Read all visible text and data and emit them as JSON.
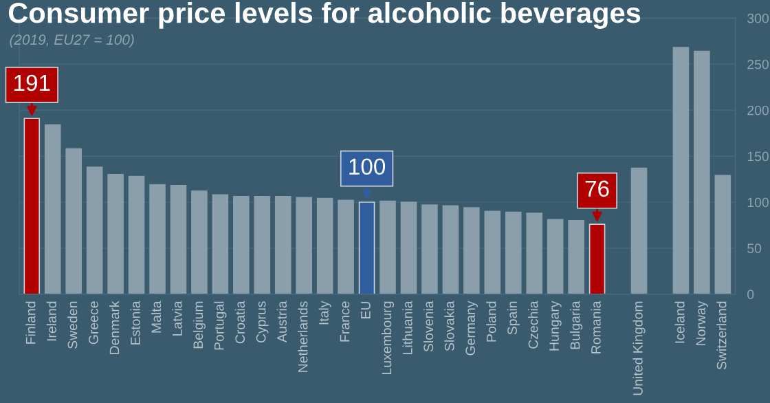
{
  "chart_data": {
    "type": "bar",
    "title": "Consumer price levels for alcoholic beverages",
    "subtitle": "(2019, EU27 = 100)",
    "categories": [
      "Finland",
      "Ireland",
      "Sweden",
      "Greece",
      "Denmark",
      "Estonia",
      "Malta",
      "Latvia",
      "Belgium",
      "Portugal",
      "Croatia",
      "Cyprus",
      "Austria",
      "Netherlands",
      "Italy",
      "France",
      "EU",
      "Luxembourg",
      "Lithuania",
      "Slovenia",
      "Slovakia",
      "Germany",
      "Poland",
      "Spain",
      "Czechia",
      "Hungary",
      "Bulgaria",
      "Romania",
      null,
      "United Kingdom",
      null,
      "Iceland",
      "Norway",
      "Switzerland"
    ],
    "values": [
      191,
      184,
      158,
      138,
      130,
      128,
      119,
      118,
      112,
      108,
      106,
      106,
      106,
      105,
      104,
      102,
      100,
      101,
      100,
      97,
      96,
      94,
      90,
      89,
      88,
      81,
      80,
      76,
      null,
      137,
      null,
      268,
      264,
      129
    ],
    "colors": [
      "#b00000",
      "#8a9fab",
      "#8a9fab",
      "#8a9fab",
      "#8a9fab",
      "#8a9fab",
      "#8a9fab",
      "#8a9fab",
      "#8a9fab",
      "#8a9fab",
      "#8a9fab",
      "#8a9fab",
      "#8a9fab",
      "#8a9fab",
      "#8a9fab",
      "#8a9fab",
      "#2f5d9e",
      "#8a9fab",
      "#8a9fab",
      "#8a9fab",
      "#8a9fab",
      "#8a9fab",
      "#8a9fab",
      "#8a9fab",
      "#8a9fab",
      "#8a9fab",
      "#8a9fab",
      "#b00000",
      "#8a9fab",
      "#8a9fab",
      "#8a9fab",
      "#8a9fab",
      "#8a9fab",
      "#8a9fab"
    ],
    "value_labels": [
      "191",
      null,
      null,
      null,
      null,
      null,
      null,
      null,
      null,
      null,
      null,
      null,
      null,
      null,
      null,
      null,
      "100",
      null,
      null,
      null,
      null,
      null,
      null,
      null,
      null,
      null,
      null,
      "76",
      null,
      null,
      null,
      null,
      null,
      null
    ],
    "ylim": [
      0,
      300
    ],
    "yticks": [
      0,
      50,
      100,
      150,
      200,
      250,
      300
    ],
    "grid": "y"
  }
}
